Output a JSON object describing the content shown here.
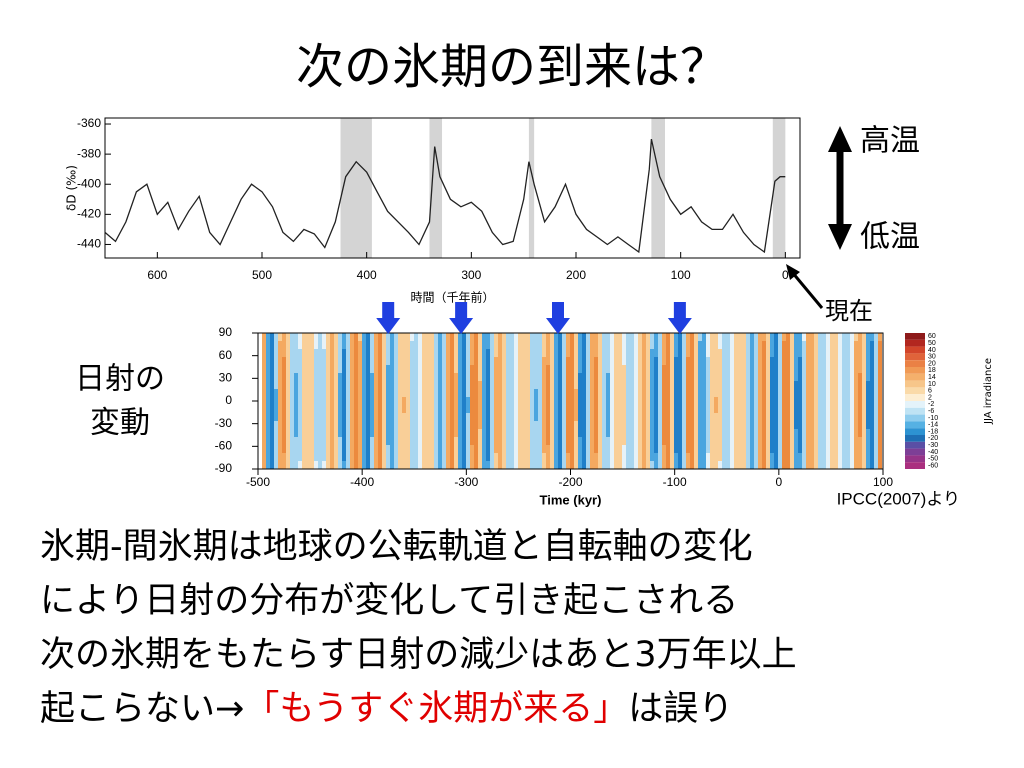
{
  "title": "次の氷期の到来は？",
  "figure_top": {
    "type": "line",
    "ylabel": "δD (‰)",
    "xlabel": "時間（千年前）",
    "xlim": [
      650,
      -14
    ],
    "ylim": [
      -449,
      -356
    ],
    "xticks": [
      600,
      500,
      400,
      300,
      200,
      100,
      0
    ],
    "yticks": [
      -360,
      -380,
      -400,
      -420,
      -440
    ],
    "color": "#222222",
    "interglacial_color": "#d4d4d4",
    "interglacials": [
      [
        425,
        395
      ],
      [
        340,
        328
      ],
      [
        245,
        240
      ],
      [
        128,
        115
      ],
      [
        12,
        0
      ]
    ],
    "x": [
      650,
      640,
      630,
      620,
      610,
      600,
      590,
      580,
      570,
      560,
      550,
      540,
      530,
      520,
      510,
      500,
      490,
      480,
      470,
      460,
      450,
      440,
      430,
      420,
      410,
      400,
      390,
      380,
      370,
      360,
      350,
      340,
      335,
      330,
      320,
      310,
      300,
      290,
      280,
      270,
      260,
      250,
      245,
      240,
      230,
      220,
      210,
      200,
      190,
      180,
      170,
      160,
      150,
      140,
      130,
      128,
      120,
      110,
      100,
      90,
      80,
      70,
      60,
      50,
      40,
      30,
      20,
      10,
      5,
      0
    ],
    "values": [
      -432,
      -438,
      -425,
      -405,
      -400,
      -420,
      -412,
      -430,
      -418,
      -408,
      -432,
      -440,
      -425,
      -410,
      -400,
      -405,
      -415,
      -432,
      -438,
      -430,
      -433,
      -442,
      -425,
      -395,
      -385,
      -392,
      -405,
      -418,
      -425,
      -432,
      -440,
      -425,
      -375,
      -395,
      -410,
      -415,
      -412,
      -418,
      -432,
      -440,
      -438,
      -410,
      -385,
      -400,
      -425,
      -415,
      -400,
      -420,
      -430,
      -435,
      -440,
      -435,
      -440,
      -445,
      -390,
      -370,
      -395,
      -410,
      -420,
      -415,
      -425,
      -430,
      -430,
      -420,
      -432,
      -440,
      -445,
      -398,
      -395,
      -395
    ]
  },
  "labels": {
    "high": "高温",
    "low": "低温",
    "now": "現在"
  },
  "figure_bottom": {
    "ylabel": [
      "日射の",
      "変動"
    ],
    "xlabel": "Time (kyr)",
    "xlim": [
      -500,
      100
    ],
    "ylim": [
      -90,
      90
    ],
    "xticks": [
      -500,
      -400,
      -300,
      -200,
      -100,
      0,
      100
    ],
    "yticks": [
      90,
      60,
      30,
      0,
      -30,
      -60,
      -90
    ],
    "colorbar_label": "JJA irradiance",
    "colorbar_ticks": [
      "60",
      "50",
      "40",
      "30",
      "20",
      "18",
      "14",
      "10",
      "6",
      "2",
      "-2",
      "-6",
      "-10",
      "-14",
      "-18",
      "-20",
      "-30",
      "-40",
      "-50",
      "-60"
    ],
    "arrows": [
      -375,
      -305,
      -212,
      -95
    ]
  },
  "source": "IPCC(2007)より",
  "body": [
    "氷期-間氷期は地球の公転軌道と自転軸の変化",
    "により日射の分布が変化して引き起こされる",
    "次の氷期をもたらす日射の減少はあと3万年以上"
  ],
  "last_line": [
    "起こらない→",
    "「もうすぐ氷期が来る」",
    "は誤り"
  ]
}
